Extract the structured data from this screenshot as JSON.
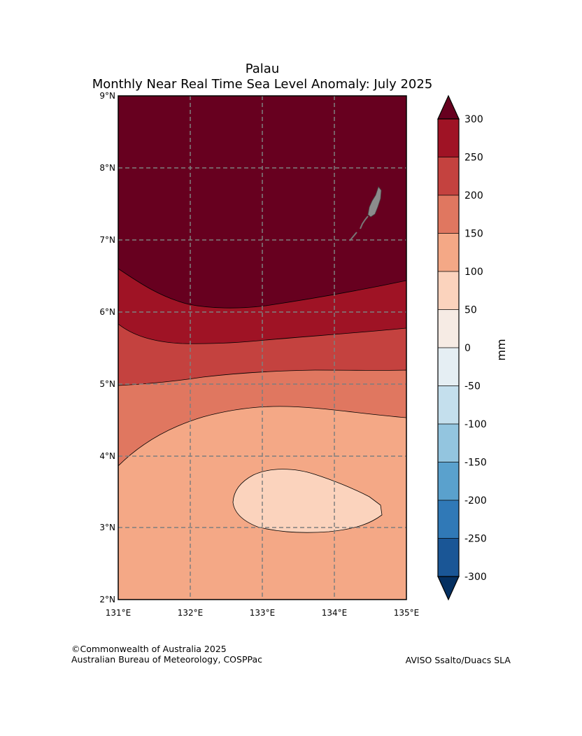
{
  "title": {
    "line1": "Palau",
    "line2": "Monthly Near Real Time Sea Level Anomaly: July 2025"
  },
  "map": {
    "lat_ticks": [
      "9°N",
      "8°N",
      "7°N",
      "6°N",
      "5°N",
      "4°N",
      "3°N",
      "2°N"
    ],
    "lon_ticks": [
      "131°E",
      "132°E",
      "133°E",
      "134°E",
      "135°E"
    ],
    "grid": true,
    "extent": {
      "lon": [
        131,
        135
      ],
      "lat": [
        2,
        9
      ]
    },
    "contour_levels_mm": [
      {
        "range": "> 300",
        "color": "#67001f"
      },
      {
        "range": "250–300",
        "color": "#9f1325"
      },
      {
        "range": "200–250",
        "color": "#c4423f"
      },
      {
        "range": "150–200",
        "color": "#e07760"
      },
      {
        "range": "100–150",
        "color": "#f4a886"
      },
      {
        "range": "50–100",
        "color": "#fbd3bd"
      }
    ],
    "land_color": "#8c8c8c"
  },
  "colorbar": {
    "label": "mm",
    "ticks": [
      "300",
      "250",
      "200",
      "150",
      "100",
      "50",
      "0",
      "-50",
      "-100",
      "-150",
      "-200",
      "-250",
      "-300"
    ],
    "colors": [
      "#9f1325",
      "#c4423f",
      "#e07760",
      "#f4a886",
      "#fbd3bd",
      "#f6ebe4",
      "#e5eef3",
      "#c4dfed",
      "#93c5df",
      "#5aa1cd",
      "#3079b7",
      "#1a5696"
    ],
    "over_color": "#67001f",
    "under_color": "#053061"
  },
  "footer": {
    "copyright": "©Commonwealth of Australia 2025",
    "credit": "Australian Bureau of Meteorology, COSPPac",
    "source": "AVISO Ssalto/Duacs SLA"
  }
}
